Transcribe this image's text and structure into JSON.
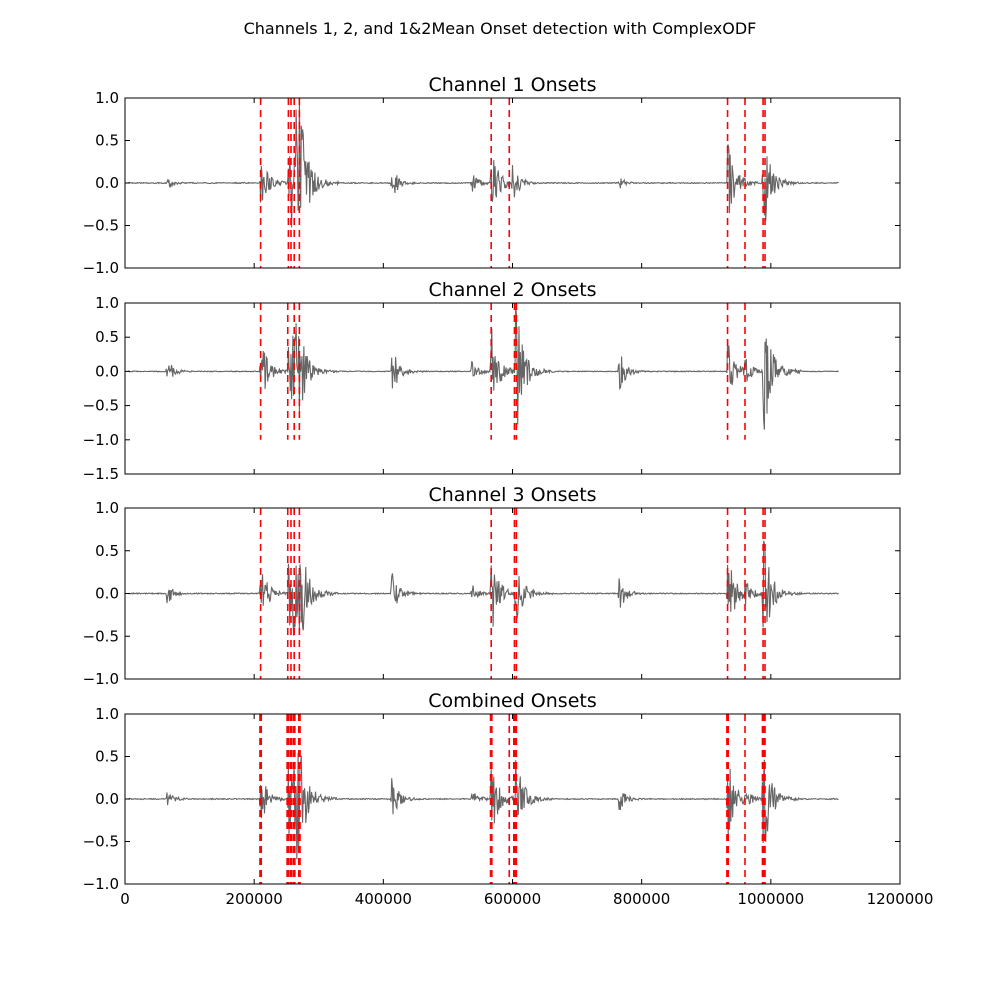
{
  "figure": {
    "suptitle": "Channels 1, 2, and 1&2Mean Onset detection with ComplexODF"
  },
  "chart_data": [
    {
      "type": "line",
      "title": "Channel 1 Onsets",
      "xlim": [
        0,
        1200000
      ],
      "ylim": [
        -1.0,
        1.0
      ],
      "yticks": [
        -1.0,
        -0.5,
        0.0,
        0.5,
        1.0
      ],
      "ytick_labels": [
        "−1.0",
        "−0.5",
        "0.0",
        "0.5",
        "1.0"
      ],
      "xtick_labels_shown": false,
      "signal_color": "#666666",
      "onset_color": "#ff0000",
      "onset_ylim": [
        -1.0,
        1.0
      ],
      "onsets": [
        210000,
        253000,
        257000,
        262000,
        270000,
        567000,
        595000,
        933000,
        960000,
        988000,
        991000
      ],
      "bursts": [
        {
          "x": 65000,
          "amp": 0.07
        },
        {
          "x": 210000,
          "amp": 0.35
        },
        {
          "x": 253000,
          "amp": 0.4
        },
        {
          "x": 258000,
          "amp": 0.55
        },
        {
          "x": 265000,
          "amp": 0.85
        },
        {
          "x": 270000,
          "amp": 1.0
        },
        {
          "x": 413000,
          "amp": 0.18
        },
        {
          "x": 537000,
          "amp": 0.12
        },
        {
          "x": 567000,
          "amp": 0.45
        },
        {
          "x": 600000,
          "amp": 0.22
        },
        {
          "x": 765000,
          "amp": 0.08
        },
        {
          "x": 933000,
          "amp": 0.45
        },
        {
          "x": 950000,
          "amp": 0.14
        },
        {
          "x": 988000,
          "amp": 0.6
        },
        {
          "x": 993000,
          "amp": 0.3
        }
      ]
    },
    {
      "type": "line",
      "title": "Channel 2 Onsets",
      "xlim": [
        0,
        1200000
      ],
      "ylim": [
        -1.5,
        1.0
      ],
      "yticks": [
        -1.5,
        -1.0,
        -0.5,
        0.0,
        0.5,
        1.0
      ],
      "ytick_labels": [
        "−1.5",
        "−1.0",
        "−0.5",
        "0.0",
        "0.5",
        "1.0"
      ],
      "xtick_labels_shown": false,
      "signal_color": "#666666",
      "onset_color": "#ff0000",
      "onset_ylim": [
        -1.0,
        1.0
      ],
      "onsets": [
        210000,
        252000,
        262000,
        270000,
        567000,
        603000,
        606000,
        933000,
        960000
      ],
      "bursts": [
        {
          "x": 65000,
          "amp": 0.18
        },
        {
          "x": 210000,
          "amp": 0.5
        },
        {
          "x": 253000,
          "amp": 0.6
        },
        {
          "x": 258000,
          "amp": 0.8
        },
        {
          "x": 265000,
          "amp": 0.95
        },
        {
          "x": 270000,
          "amp": 0.7
        },
        {
          "x": 413000,
          "amp": 0.35
        },
        {
          "x": 537000,
          "amp": 0.15
        },
        {
          "x": 567000,
          "amp": 0.7
        },
        {
          "x": 605000,
          "amp": 1.0
        },
        {
          "x": 765000,
          "amp": 0.3
        },
        {
          "x": 933000,
          "amp": 0.55
        },
        {
          "x": 960000,
          "amp": 0.2
        },
        {
          "x": 988000,
          "amp": 1.05
        },
        {
          "x": 993000,
          "amp": 0.5
        }
      ]
    },
    {
      "type": "line",
      "title": "Channel 3 Onsets",
      "xlim": [
        0,
        1200000
      ],
      "ylim": [
        -1.0,
        1.0
      ],
      "yticks": [
        -1.0,
        -0.5,
        0.0,
        0.5,
        1.0
      ],
      "ytick_labels": [
        "−1.0",
        "−0.5",
        "0.0",
        "0.5",
        "1.0"
      ],
      "xtick_labels_shown": false,
      "signal_color": "#666666",
      "onset_color": "#ff0000",
      "onset_ylim": [
        -1.0,
        1.0
      ],
      "onsets": [
        210000,
        252000,
        257000,
        262000,
        270000,
        567000,
        603000,
        606000,
        933000,
        960000,
        988000,
        991000
      ],
      "bursts": [
        {
          "x": 65000,
          "amp": 0.12
        },
        {
          "x": 210000,
          "amp": 0.35
        },
        {
          "x": 253000,
          "amp": 0.45
        },
        {
          "x": 258000,
          "amp": 0.6
        },
        {
          "x": 265000,
          "amp": 0.7
        },
        {
          "x": 270000,
          "amp": 0.8
        },
        {
          "x": 413000,
          "amp": 0.25
        },
        {
          "x": 537000,
          "amp": 0.12
        },
        {
          "x": 567000,
          "amp": 0.5
        },
        {
          "x": 605000,
          "amp": 0.45
        },
        {
          "x": 765000,
          "amp": 0.2
        },
        {
          "x": 933000,
          "amp": 0.5
        },
        {
          "x": 960000,
          "amp": 0.18
        },
        {
          "x": 988000,
          "amp": 0.7
        },
        {
          "x": 993000,
          "amp": 0.4
        }
      ]
    },
    {
      "type": "line",
      "title": "Combined Onsets",
      "xlim": [
        0,
        1200000
      ],
      "ylim": [
        -1.0,
        1.0
      ],
      "yticks": [
        -1.0,
        -0.5,
        0.0,
        0.5,
        1.0
      ],
      "ytick_labels": [
        "−1.0",
        "−0.5",
        "0.0",
        "0.5",
        "1.0"
      ],
      "xticks": [
        0,
        200000,
        400000,
        600000,
        800000,
        1000000,
        1200000
      ],
      "xtick_labels": [
        "0",
        "200000",
        "400000",
        "600000",
        "800000",
        "1000000",
        "1200000"
      ],
      "xtick_labels_shown": true,
      "signal_color": "#666666",
      "onset_color": "#ff0000",
      "onset_ylim": [
        -1.0,
        1.0
      ],
      "onsets": [
        209000,
        211000,
        251000,
        253000,
        256000,
        258000,
        261000,
        263000,
        269000,
        271000,
        566000,
        568000,
        595000,
        602000,
        604000,
        606000,
        932000,
        934000,
        960000,
        987000,
        989000,
        991000
      ],
      "bursts": [
        {
          "x": 65000,
          "amp": 0.1
        },
        {
          "x": 210000,
          "amp": 0.3
        },
        {
          "x": 253000,
          "amp": 0.45
        },
        {
          "x": 258000,
          "amp": 0.6
        },
        {
          "x": 265000,
          "amp": 0.8
        },
        {
          "x": 270000,
          "amp": 0.75
        },
        {
          "x": 413000,
          "amp": 0.25
        },
        {
          "x": 537000,
          "amp": 0.12
        },
        {
          "x": 567000,
          "amp": 0.45
        },
        {
          "x": 605000,
          "amp": 0.55
        },
        {
          "x": 765000,
          "amp": 0.15
        },
        {
          "x": 933000,
          "amp": 0.5
        },
        {
          "x": 960000,
          "amp": 0.15
        },
        {
          "x": 988000,
          "amp": 0.7
        },
        {
          "x": 993000,
          "amp": 0.35
        }
      ]
    }
  ]
}
